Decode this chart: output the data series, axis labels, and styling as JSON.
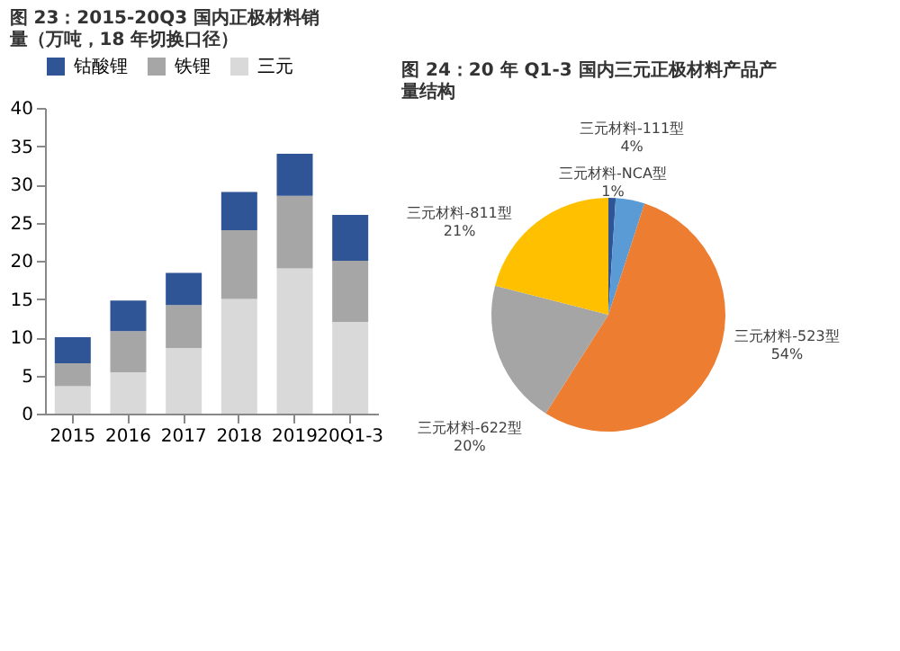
{
  "chart_data": [
    {
      "type": "bar",
      "title": "图 23：2015-20Q3 国内正极材料销量（万吨，18 年切换口径）",
      "stacked": true,
      "legend": "top",
      "grid": false,
      "categories": [
        "2015",
        "2016",
        "2017",
        "2018",
        "2019",
        "20Q1-3"
      ],
      "series": [
        {
          "name": "三元",
          "color": "#d9d9d9",
          "values": [
            3.6,
            5.4,
            8.6,
            15,
            19,
            12
          ]
        },
        {
          "name": "铁锂",
          "color": "#a6a6a6",
          "values": [
            3.0,
            5.4,
            5.6,
            9,
            9.5,
            8
          ]
        },
        {
          "name": "钴酸锂",
          "color": "#2f5597",
          "values": [
            3.4,
            4.0,
            4.2,
            5,
            5.5,
            6
          ]
        }
      ],
      "ylim": [
        0,
        40
      ],
      "yticks": [
        0,
        5,
        10,
        15,
        20,
        25,
        30,
        35,
        40
      ]
    },
    {
      "type": "pie",
      "title": "图 24：20 年 Q1-3 国内三元正极材料产品产量结构",
      "categories": [
        "三元材料-NCA型",
        "三元材料-111型",
        "三元材料-523型",
        "三元材料-622型",
        "三元材料-811型"
      ],
      "values": [
        1,
        4,
        54,
        20,
        21
      ],
      "colors": [
        "#2f5597",
        "#5b9bd5",
        "#ed7d31",
        "#a5a5a5",
        "#ffc000"
      ],
      "value_labels": [
        "1%",
        "4%",
        "54%",
        "20%",
        "21%"
      ]
    }
  ]
}
